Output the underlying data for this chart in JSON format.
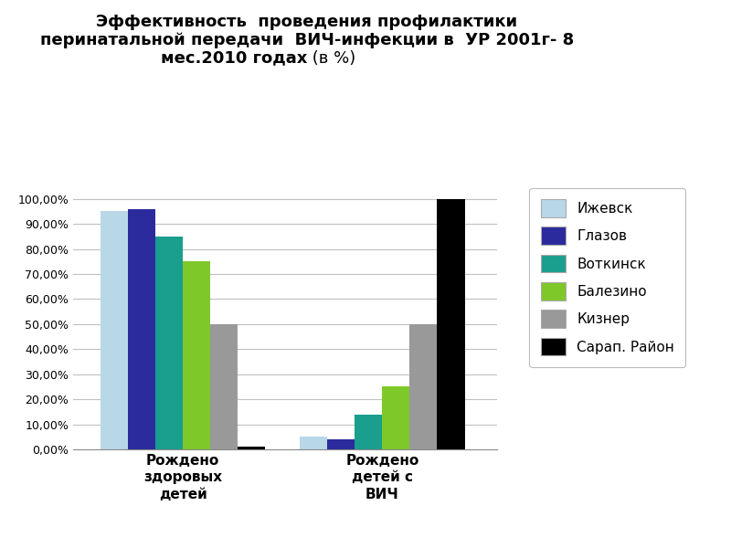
{
  "title_line1": "Эффективность  проведения профилактики",
  "title_line2": "перинатальной передачи  ВИЧ-инфекции в  УР 2001г- 8",
  "title_line3_bold": "мес.2010 годах",
  "title_line3_normal": " (в %)",
  "categories": [
    "Рождено\nздоровых\nдетей",
    "Рождено\nдетей с\nВИЧ"
  ],
  "series": [
    {
      "label": "Ижевск",
      "color": "#b8d8e8",
      "values": [
        95.0,
        5.0
      ]
    },
    {
      "label": "Глазов",
      "color": "#2b2b9e",
      "values": [
        96.0,
        4.0
      ]
    },
    {
      "label": "Воткинск",
      "color": "#1a9e8e",
      "values": [
        85.0,
        14.0
      ]
    },
    {
      "label": "Балезино",
      "color": "#7ec82a",
      "values": [
        75.0,
        25.0
      ]
    },
    {
      "label": "Кизнер",
      "color": "#999999",
      "values": [
        50.0,
        50.0
      ]
    },
    {
      "label": "Сарап. Район",
      "color": "#000000",
      "values": [
        1.0,
        100.0
      ]
    }
  ],
  "ylim": [
    0,
    105
  ],
  "yticks": [
    0,
    10,
    20,
    30,
    40,
    50,
    60,
    70,
    80,
    90,
    100
  ],
  "ytick_labels": [
    "0,00%",
    "10,00%",
    "20,00%",
    "30,00%",
    "40,00%",
    "50,00%",
    "60,00%",
    "70,00%",
    "80,00%",
    "90,00%",
    "100,00%"
  ],
  "background_color": "#ffffff",
  "grid_color": "#c0c0c0",
  "bar_width": 0.055,
  "group_centers": [
    0.22,
    0.62
  ]
}
